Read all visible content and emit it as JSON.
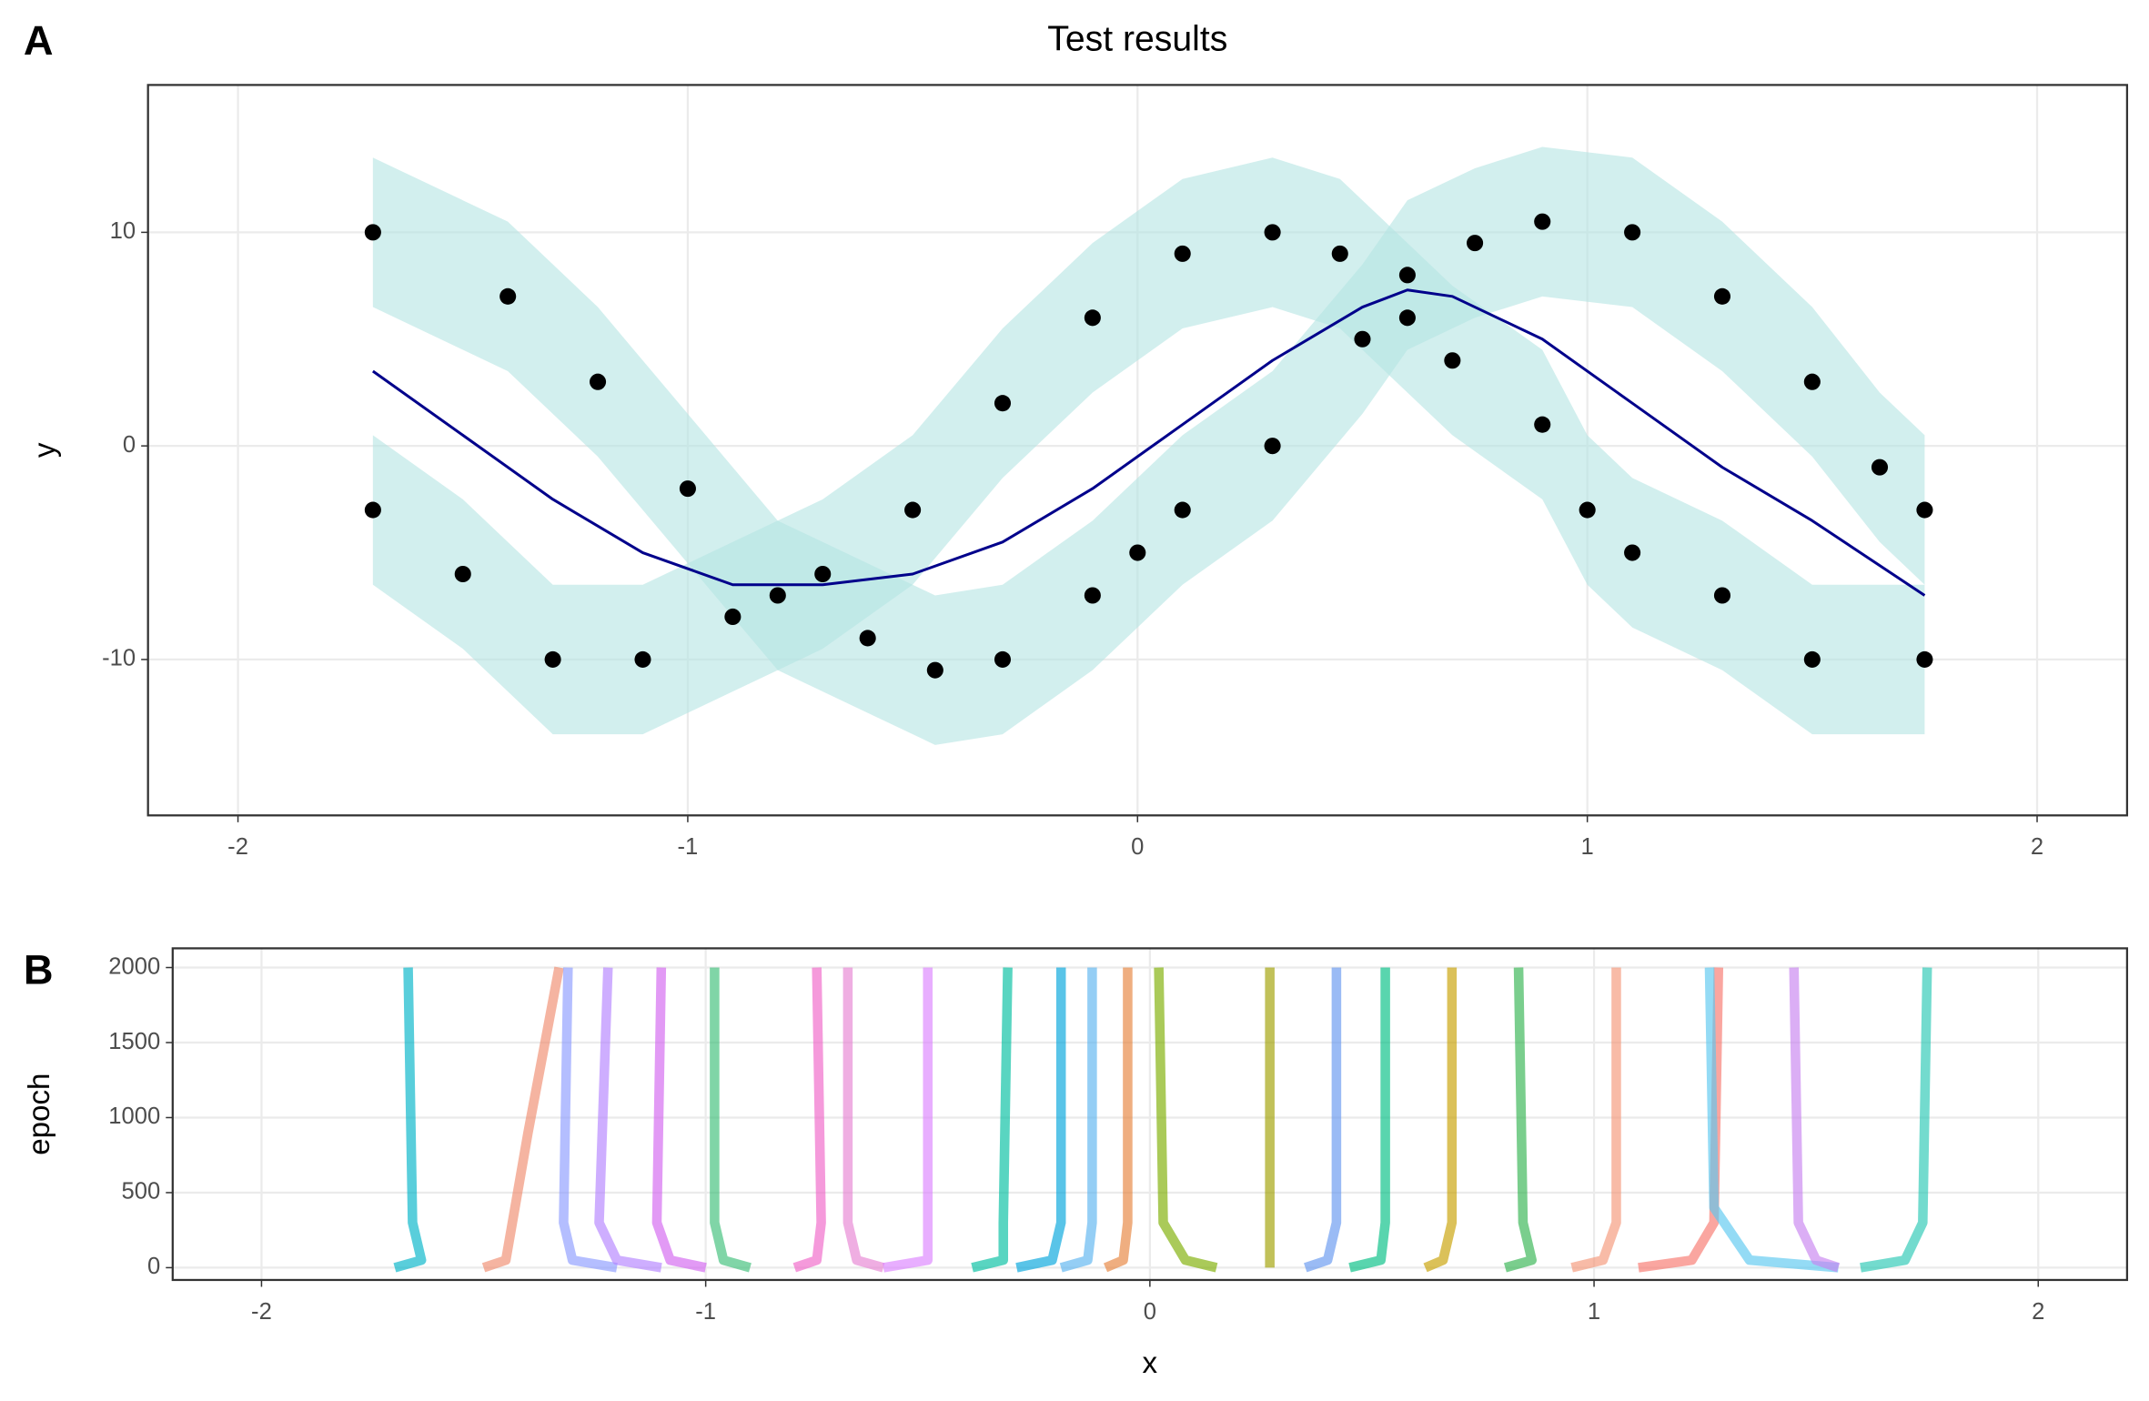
{
  "chart_data": [
    {
      "type": "scatter",
      "panel_label": "A",
      "title": "Test results",
      "y_label": "y",
      "xlim": [
        -2.2,
        2.2
      ],
      "xticks": [
        -2,
        -1,
        0,
        1,
        2
      ],
      "ylim": [
        -17.3,
        16.9
      ],
      "yticks": [
        -10,
        0,
        10
      ],
      "grid": true,
      "series": [
        {
          "type": "band",
          "color": "#b4e5e2",
          "x": [
            -1.7,
            -1.4,
            -1.2,
            -1,
            -0.8,
            -0.6,
            -0.45,
            -0.3,
            -0.1,
            0,
            0.1,
            0.3,
            0.5,
            0.6,
            0.75,
            0.9,
            1.1,
            1.3,
            1.5,
            1.65,
            1.75
          ],
          "lower": [
            6.5,
            3.5,
            -0.5,
            -5.5,
            -10.5,
            -12.5,
            -14,
            -13.5,
            -10.5,
            -8.5,
            -6.5,
            -3.5,
            1.5,
            4.5,
            6,
            7,
            6.5,
            3.5,
            -0.5,
            -4.5,
            -6.5
          ],
          "upper": [
            13.5,
            10.5,
            6.5,
            1.5,
            -3.5,
            -5.5,
            -7,
            -6.5,
            -3.5,
            -1.5,
            0.5,
            3.5,
            8.5,
            11.5,
            13,
            14,
            13.5,
            10.5,
            6.5,
            2.5,
            0.5
          ]
        },
        {
          "type": "band",
          "color": "#b4e5e2",
          "x": [
            -1.7,
            -1.5,
            -1.3,
            -1.1,
            -0.9,
            -0.7,
            -0.5,
            -0.3,
            -0.1,
            0.1,
            0.3,
            0.45,
            0.6,
            0.7,
            0.9,
            1.0,
            1.1,
            1.3,
            1.5,
            1.75
          ],
          "lower": [
            -6.5,
            -9.5,
            -13.5,
            -13.5,
            -11.5,
            -9.5,
            -6.5,
            -1.5,
            2.5,
            5.5,
            6.5,
            5.5,
            2.5,
            0.5,
            -2.5,
            -6.5,
            -8.5,
            -10.5,
            -13.5,
            -13.5
          ],
          "upper": [
            0.5,
            -2.5,
            -6.5,
            -6.5,
            -4.5,
            -2.5,
            0.5,
            5.5,
            9.5,
            12.5,
            13.5,
            12.5,
            9.5,
            7.5,
            4.5,
            0.5,
            -1.5,
            -3.5,
            -6.5,
            -6.5
          ]
        },
        {
          "type": "scatter",
          "color": "#000000",
          "x": [
            -1.7,
            -1.4,
            -1.2,
            -1,
            -0.8,
            -0.6,
            -0.45,
            -0.3,
            -0.1,
            0,
            0.1,
            0.3,
            0.5,
            0.6,
            0.75,
            0.9,
            1.1,
            1.3,
            1.5,
            1.65,
            1.75
          ],
          "values": [
            10,
            7,
            3,
            -2,
            -7,
            -9,
            -10.5,
            -10,
            -7,
            -5,
            -3,
            0,
            5,
            8,
            9.5,
            10.5,
            10,
            7,
            3,
            -1,
            -3
          ]
        },
        {
          "type": "scatter",
          "color": "#000000",
          "x": [
            -1.7,
            -1.5,
            -1.3,
            -1.1,
            -0.9,
            -0.7,
            -0.5,
            -0.3,
            -0.1,
            0.1,
            0.3,
            0.45,
            0.6,
            0.7,
            0.9,
            1.0,
            1.1,
            1.3,
            1.5,
            1.75
          ],
          "values": [
            -3,
            -6,
            -10,
            -10,
            -8,
            -6,
            -3,
            2,
            6,
            9,
            10,
            9,
            6,
            4,
            1,
            -3,
            -5,
            -7,
            -10,
            -10
          ]
        },
        {
          "type": "line",
          "color": "#00008b",
          "x": [
            -1.7,
            -1.5,
            -1.3,
            -1.1,
            -0.9,
            -0.7,
            -0.5,
            -0.3,
            -0.1,
            0.1,
            0.3,
            0.5,
            0.6,
            0.7,
            0.9,
            1.1,
            1.3,
            1.5,
            1.75
          ],
          "values": [
            3.5,
            0.5,
            -2.5,
            -5,
            -6.5,
            -6.5,
            -6,
            -4.5,
            -2,
            1,
            4,
            6.5,
            7.3,
            7,
            5,
            2,
            -1,
            -3.5,
            -7
          ]
        }
      ]
    },
    {
      "type": "line",
      "panel_label": "B",
      "x_label": "x",
      "y_label": "epoch",
      "xlim": [
        -2.2,
        2.2
      ],
      "xticks": [
        -2,
        -1,
        0,
        1,
        2
      ],
      "ylim": [
        -82,
        2128
      ],
      "yticks": [
        0,
        500,
        1000,
        1500,
        2000
      ],
      "grid": true,
      "series": [
        {
          "type": "line",
          "color": "#00b4c8",
          "x": [
            -1.7,
            -1.64,
            -1.66,
            -1.67
          ],
          "values": [
            0,
            50,
            300,
            2000
          ]
        },
        {
          "type": "line",
          "color": "#f08c6e",
          "x": [
            -1.5,
            -1.45,
            -1.4,
            -1.33
          ],
          "values": [
            0,
            50,
            900,
            2000
          ]
        },
        {
          "type": "line",
          "color": "#8c9bff",
          "x": [
            -1.2,
            -1.3,
            -1.32,
            -1.31
          ],
          "values": [
            0,
            50,
            300,
            2000
          ]
        },
        {
          "type": "line",
          "color": "#b482ff",
          "x": [
            -1.1,
            -1.2,
            -1.24,
            -1.22
          ],
          "values": [
            0,
            50,
            300,
            2000
          ]
        },
        {
          "type": "line",
          "color": "#d264f0",
          "x": [
            -1.0,
            -1.08,
            -1.11,
            -1.1
          ],
          "values": [
            0,
            50,
            300,
            2000
          ]
        },
        {
          "type": "line",
          "color": "#3cbe78",
          "x": [
            -0.9,
            -0.96,
            -0.98,
            -0.98
          ],
          "values": [
            0,
            50,
            300,
            2000
          ]
        },
        {
          "type": "line",
          "color": "#f064c8",
          "x": [
            -0.8,
            -0.75,
            -0.74,
            -0.75
          ],
          "values": [
            0,
            50,
            300,
            2000
          ]
        },
        {
          "type": "line",
          "color": "#e682d2",
          "x": [
            -0.6,
            -0.66,
            -0.68,
            -0.68
          ],
          "values": [
            0,
            50,
            300,
            2000
          ]
        },
        {
          "type": "line",
          "color": "#dc82ff",
          "x": [
            -0.6,
            -0.5,
            -0.5,
            -0.5
          ],
          "values": [
            0,
            50,
            300,
            2000
          ]
        },
        {
          "type": "line",
          "color": "#00bea0",
          "x": [
            -0.4,
            -0.33,
            -0.33,
            -0.32
          ],
          "values": [
            0,
            50,
            300,
            2000
          ]
        },
        {
          "type": "line",
          "color": "#00a5dc",
          "x": [
            -0.3,
            -0.22,
            -0.2,
            -0.2
          ],
          "values": [
            0,
            50,
            300,
            2000
          ]
        },
        {
          "type": "line",
          "color": "#5ab4f0",
          "x": [
            -0.2,
            -0.14,
            -0.13,
            -0.13
          ],
          "values": [
            0,
            50,
            300,
            2000
          ]
        },
        {
          "type": "line",
          "color": "#e6823c",
          "x": [
            -0.1,
            -0.06,
            -0.05,
            -0.05
          ],
          "values": [
            0,
            50,
            300,
            2000
          ]
        },
        {
          "type": "line",
          "color": "#7cae00",
          "x": [
            0.15,
            0.08,
            0.03,
            0.02
          ],
          "values": [
            0,
            50,
            300,
            2000
          ]
        },
        {
          "type": "line",
          "color": "#a0a000",
          "x": [
            0.27,
            0.27,
            0.27,
            0.27
          ],
          "values": [
            0,
            50,
            300,
            2000
          ]
        },
        {
          "type": "line",
          "color": "#6496f0",
          "x": [
            0.35,
            0.4,
            0.42,
            0.42
          ],
          "values": [
            0,
            50,
            300,
            2000
          ]
        },
        {
          "type": "line",
          "color": "#00be82",
          "x": [
            0.45,
            0.52,
            0.53,
            0.53
          ],
          "values": [
            0,
            50,
            300,
            2000
          ]
        },
        {
          "type": "line",
          "color": "#c8a000",
          "x": [
            0.62,
            0.66,
            0.68,
            0.68
          ],
          "values": [
            0,
            50,
            300,
            2000
          ]
        },
        {
          "type": "line",
          "color": "#32b450",
          "x": [
            0.8,
            0.86,
            0.84,
            0.83
          ],
          "values": [
            0,
            50,
            300,
            2000
          ]
        },
        {
          "type": "line",
          "color": "#f59678",
          "x": [
            0.95,
            1.02,
            1.05,
            1.05
          ],
          "values": [
            0,
            50,
            300,
            2000
          ]
        },
        {
          "type": "line",
          "color": "#f8766d",
          "x": [
            1.1,
            1.22,
            1.27,
            1.28
          ],
          "values": [
            0,
            50,
            300,
            2000
          ]
        },
        {
          "type": "line",
          "color": "#5ac8f0",
          "x": [
            1.55,
            1.35,
            1.27,
            1.26
          ],
          "values": [
            0,
            50,
            400,
            2000
          ]
        },
        {
          "type": "line",
          "color": "#c882f0",
          "x": [
            1.55,
            1.5,
            1.46,
            1.45
          ],
          "values": [
            0,
            50,
            300,
            2000
          ]
        },
        {
          "type": "line",
          "color": "#28c8b4",
          "x": [
            1.6,
            1.7,
            1.74,
            1.75
          ],
          "values": [
            0,
            50,
            300,
            2000
          ]
        }
      ]
    }
  ]
}
